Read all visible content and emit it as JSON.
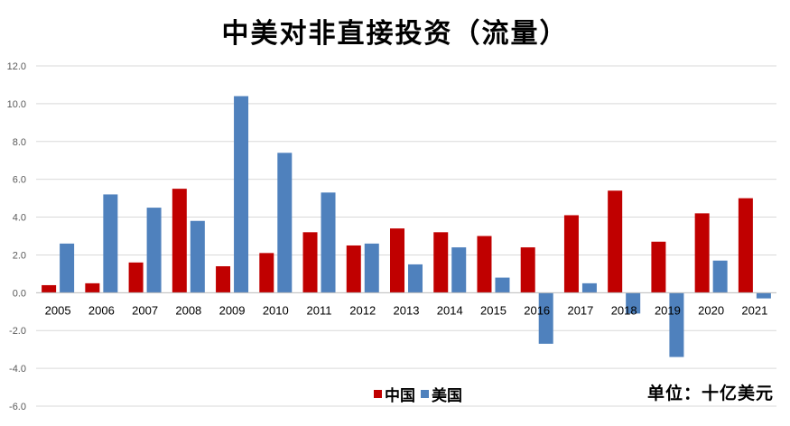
{
  "chart_data": {
    "type": "bar",
    "title": "中美对非直接投资（流量）",
    "unit_note": "单位：十亿美元",
    "categories": [
      "2005",
      "2006",
      "2007",
      "2008",
      "2009",
      "2010",
      "2011",
      "2012",
      "2013",
      "2014",
      "2015",
      "2016",
      "2017",
      "2018",
      "2019",
      "2020",
      "2021"
    ],
    "series": [
      {
        "name": "中国",
        "color": "#C00000",
        "values": [
          0.4,
          0.5,
          1.6,
          5.5,
          1.4,
          2.1,
          3.2,
          2.5,
          3.4,
          3.2,
          3.0,
          2.4,
          4.1,
          5.4,
          2.7,
          4.2,
          5.0
        ]
      },
      {
        "name": "美国",
        "color": "#4F81BD",
        "values": [
          2.6,
          5.2,
          4.5,
          3.8,
          10.4,
          7.4,
          5.3,
          2.6,
          1.5,
          2.4,
          0.8,
          -2.7,
          0.5,
          -1.1,
          -3.4,
          1.7,
          -0.3
        ]
      }
    ],
    "ylim": [
      -6.0,
      12.0
    ],
    "yticks": [
      "12.0",
      "10.0",
      "8.0",
      "6.0",
      "4.0",
      "2.0",
      "0.0",
      "-2.0",
      "-4.0",
      "-6.0"
    ],
    "grid": true,
    "legend_position": "bottom"
  }
}
